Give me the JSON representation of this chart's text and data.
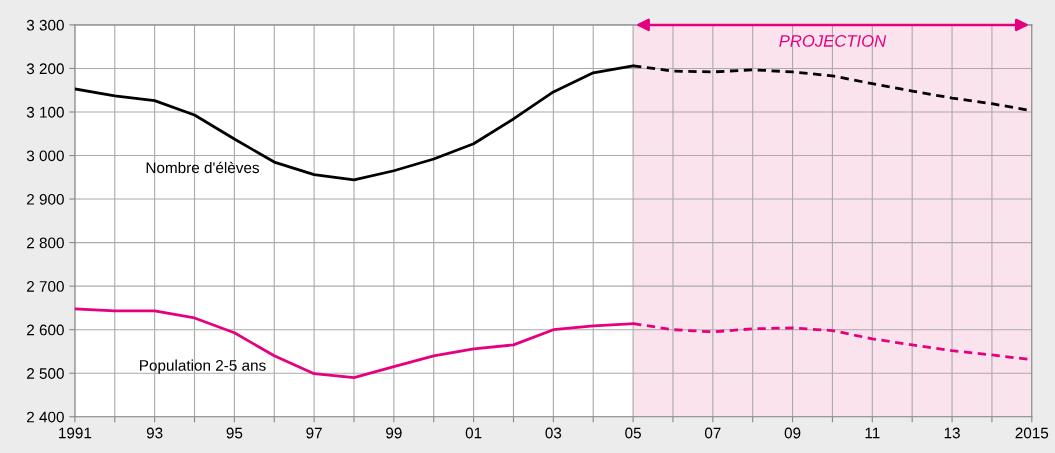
{
  "chart_data": {
    "type": "line",
    "series": [
      {
        "name": "Nombre d'élèves",
        "color": "#000000",
        "line_style": "solid",
        "x": [
          1991,
          1992,
          1993,
          1994,
          1995,
          1996,
          1997,
          1998,
          1999,
          2000,
          2001,
          2002,
          2003,
          2004,
          2005
        ],
        "values": [
          3153,
          3137,
          3126,
          3093,
          3038,
          2985,
          2956,
          2944,
          2965,
          2992,
          3027,
          3084,
          3146,
          3190,
          3206
        ]
      },
      {
        "color": "#000000",
        "line_style": "dashed",
        "x": [
          2005,
          2006,
          2007,
          2008,
          2009,
          2010,
          2011,
          2012,
          2013,
          2014,
          2015
        ],
        "values": [
          3206,
          3194,
          3192,
          3197,
          3192,
          3183,
          3165,
          3148,
          3132,
          3119,
          3103
        ]
      },
      {
        "name": "Population 2-5 ans",
        "color": "#e6007e",
        "line_style": "solid",
        "x": [
          1991,
          1992,
          1993,
          1994,
          1995,
          1996,
          1997,
          1998,
          1999,
          2000,
          2001,
          2002,
          2003,
          2004,
          2005
        ],
        "values": [
          2648,
          2643,
          2643,
          2627,
          2593,
          2540,
          2499,
          2490,
          2515,
          2540,
          2556,
          2565,
          2600,
          2609,
          2614
        ]
      },
      {
        "color": "#e6007e",
        "line_style": "dashed",
        "x": [
          2005,
          2006,
          2007,
          2008,
          2009,
          2010,
          2011,
          2012,
          2013,
          2014,
          2015
        ],
        "values": [
          2614,
          2600,
          2595,
          2602,
          2604,
          2598,
          2579,
          2565,
          2552,
          2542,
          2531
        ]
      }
    ],
    "xlim": [
      1991,
      2015
    ],
    "xticks": [
      {
        "value": 1991,
        "label": "1991"
      },
      {
        "value": 1992,
        "label": null
      },
      {
        "value": 1993,
        "label": "93"
      },
      {
        "value": 1994,
        "label": null
      },
      {
        "value": 1995,
        "label": "95"
      },
      {
        "value": 1996,
        "label": null
      },
      {
        "value": 1997,
        "label": "97"
      },
      {
        "value": 1998,
        "label": null
      },
      {
        "value": 1999,
        "label": "99"
      },
      {
        "value": 2000,
        "label": null
      },
      {
        "value": 2001,
        "label": "01"
      },
      {
        "value": 2002,
        "label": null
      },
      {
        "value": 2003,
        "label": "03"
      },
      {
        "value": 2004,
        "label": null
      },
      {
        "value": 2005,
        "label": "05"
      },
      {
        "value": 2006,
        "label": null
      },
      {
        "value": 2007,
        "label": "07"
      },
      {
        "value": 2008,
        "label": null
      },
      {
        "value": 2009,
        "label": "09"
      },
      {
        "value": 2010,
        "label": null
      },
      {
        "value": 2011,
        "label": "11"
      },
      {
        "value": 2012,
        "label": null
      },
      {
        "value": 2013,
        "label": "13"
      },
      {
        "value": 2014,
        "label": null
      },
      {
        "value": 2015,
        "label": "2015"
      }
    ],
    "ylim": [
      2400,
      3300
    ],
    "yticks": [
      {
        "value": 2400,
        "label": "2 400"
      },
      {
        "value": 2500,
        "label": "2 500"
      },
      {
        "value": 2600,
        "label": "2 600"
      },
      {
        "value": 2700,
        "label": "2 700"
      },
      {
        "value": 2800,
        "label": "2 800"
      },
      {
        "value": 2900,
        "label": "2 900"
      },
      {
        "value": 3000,
        "label": "3 000"
      },
      {
        "value": 3100,
        "label": "3 100"
      },
      {
        "value": 3200,
        "label": "3 200"
      },
      {
        "value": 3300,
        "label": "3 300"
      }
    ],
    "grid": true,
    "bands": [
      {
        "axis": "x",
        "from": 2005,
        "to": 2015,
        "label": "PROJECTION",
        "color": "#fbe3ee"
      }
    ]
  }
}
